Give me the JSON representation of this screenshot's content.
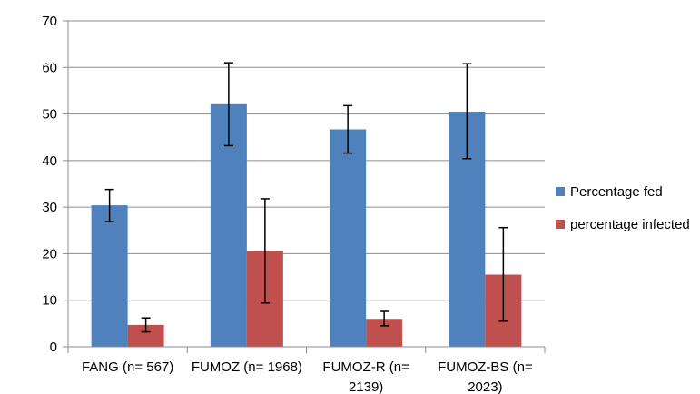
{
  "chart_data": {
    "type": "bar",
    "categories": [
      [
        "FANG (n= 567)"
      ],
      [
        "FUMOZ (n= 1968)"
      ],
      [
        "FUMOZ-R (n=",
        "2139)"
      ],
      [
        "FUMOZ-BS (n=",
        "2023)"
      ]
    ],
    "series": [
      {
        "name": "Percentage fed",
        "color": "#4F81BD",
        "values": [
          30.4,
          52.1,
          46.7,
          50.5
        ],
        "error_low": [
          26.9,
          43.2,
          41.6,
          40.4
        ],
        "error_high": [
          33.8,
          61.0,
          51.8,
          60.8
        ]
      },
      {
        "name": "percentage infected",
        "color": "#C0504D",
        "values": [
          4.7,
          20.6,
          6.0,
          15.5
        ],
        "error_low": [
          3.2,
          9.4,
          4.5,
          5.5
        ],
        "error_high": [
          6.2,
          31.8,
          7.6,
          25.6
        ]
      }
    ],
    "ylim": [
      0,
      70
    ],
    "yticks": [
      0,
      10,
      20,
      30,
      40,
      50,
      60,
      70
    ],
    "grid": true,
    "legend": "right"
  }
}
